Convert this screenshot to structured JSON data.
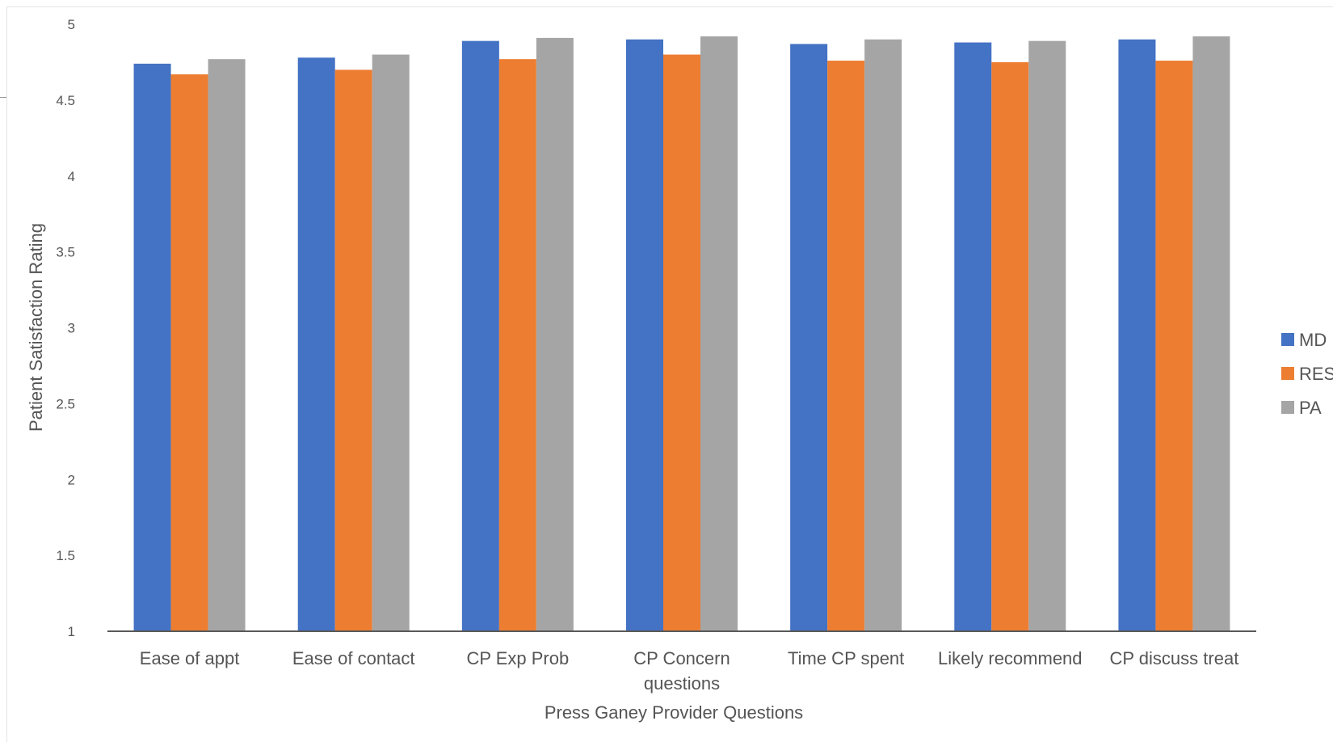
{
  "chart_data": {
    "type": "bar",
    "title": "",
    "xlabel": "Press Ganey Provider Questions",
    "ylabel": "Patient Satisfaction Rating",
    "ylim": [
      1,
      5
    ],
    "yticks": [
      "1",
      "1.5",
      "2",
      "2.5",
      "3",
      "3.5",
      "4",
      "4.5",
      "5"
    ],
    "grid": false,
    "legend_position": "right",
    "categories": [
      [
        "Ease of appt"
      ],
      [
        "Ease of contact"
      ],
      [
        "CP Exp Prob"
      ],
      [
        "CP Concern",
        "questions"
      ],
      [
        "Time CP spent"
      ],
      [
        "Likely recommend"
      ],
      [
        "CP discuss treat"
      ]
    ],
    "series": [
      {
        "name": "MD",
        "color": "#4472C4",
        "values": [
          4.74,
          4.78,
          4.89,
          4.9,
          4.87,
          4.88,
          4.9
        ]
      },
      {
        "name": "RES",
        "color": "#ED7D31",
        "values": [
          4.67,
          4.7,
          4.77,
          4.8,
          4.76,
          4.75,
          4.76
        ]
      },
      {
        "name": "PA",
        "color": "#A5A5A5",
        "values": [
          4.77,
          4.8,
          4.91,
          4.92,
          4.9,
          4.89,
          4.92
        ]
      }
    ]
  }
}
